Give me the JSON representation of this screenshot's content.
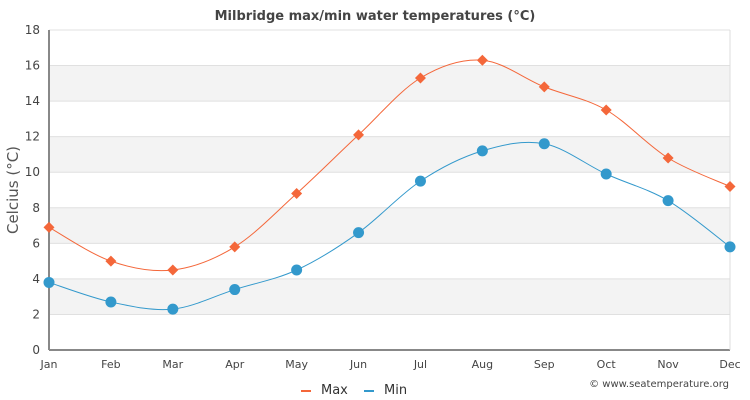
{
  "chart_data": {
    "type": "line",
    "title": "Milbridge max/min water temperatures (°C)",
    "xlabel": "",
    "ylabel": "Celcius (°C)",
    "categories": [
      "Jan",
      "Feb",
      "Mar",
      "Apr",
      "May",
      "Jun",
      "Jul",
      "Aug",
      "Sep",
      "Oct",
      "Nov",
      "Dec"
    ],
    "ylim": [
      0,
      18
    ],
    "yticks": [
      0,
      2,
      4,
      6,
      8,
      10,
      12,
      14,
      16,
      18
    ],
    "grid": true,
    "legend_position": "bottom-center",
    "series": [
      {
        "name": "Max",
        "color": "#f4673a",
        "marker": "diamond",
        "values": [
          6.9,
          5.0,
          4.5,
          5.8,
          8.8,
          12.1,
          15.3,
          16.3,
          14.8,
          13.5,
          10.8,
          9.2
        ]
      },
      {
        "name": "Min",
        "color": "#3399cc",
        "marker": "circle",
        "values": [
          3.8,
          2.7,
          2.3,
          3.4,
          4.5,
          6.6,
          9.5,
          11.2,
          11.6,
          9.9,
          8.4,
          5.8
        ]
      }
    ],
    "credit": "© www.seatemperature.org"
  }
}
